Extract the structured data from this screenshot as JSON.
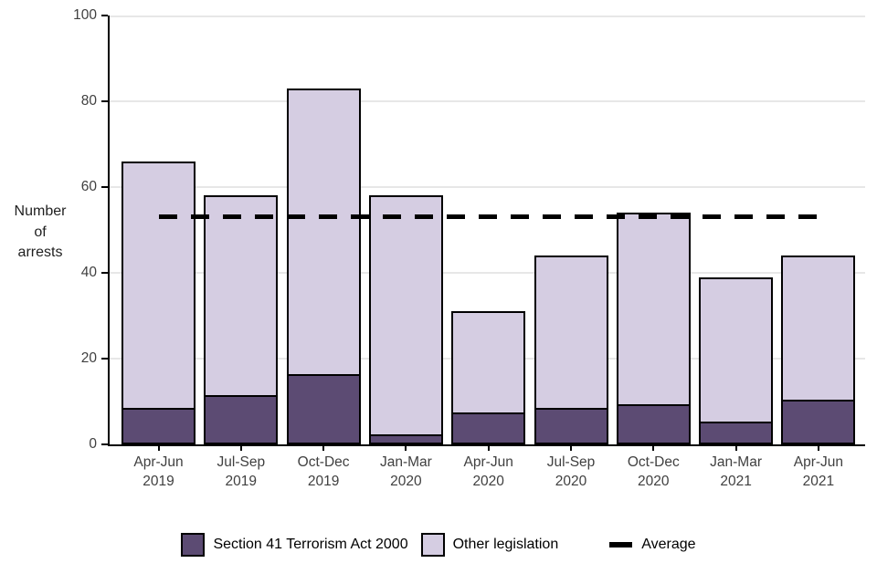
{
  "figure": {
    "background": "#FFFFFF",
    "axis_color": "#000000",
    "tick_label_color": "#404040",
    "grid_color": "#E7E7E7"
  },
  "chart_data": {
    "type": "bar",
    "stacked": true,
    "title": "",
    "xlabel": "",
    "ylabel": "Number of arrests",
    "ylabel_lines": [
      "Number",
      "of",
      "arrests"
    ],
    "ylim": [
      0,
      100
    ],
    "yticks": [
      0,
      20,
      40,
      60,
      80,
      100
    ],
    "grid": true,
    "legend_position": "bottom",
    "categories": [
      "Apr-Jun 2019",
      "Jul-Sep 2019",
      "Oct-Dec 2019",
      "Jan-Mar 2020",
      "Apr-Jun 2020",
      "Jul-Sep 2020",
      "Oct-Dec 2020",
      "Jan-Mar 2021",
      "Apr-Jun 2021"
    ],
    "category_lines": [
      [
        "Apr-Jun",
        "2019"
      ],
      [
        "Jul-Sep",
        "2019"
      ],
      [
        "Oct-Dec",
        "2019"
      ],
      [
        "Jan-Mar",
        "2020"
      ],
      [
        "Apr-Jun",
        "2020"
      ],
      [
        "Jul-Sep",
        "2020"
      ],
      [
        "Oct-Dec",
        "2020"
      ],
      [
        "Jan-Mar",
        "2021"
      ],
      [
        "Apr-Jun",
        "2021"
      ]
    ],
    "series": [
      {
        "name": "Section 41 Terrorism Act 2000",
        "color": "#5C4B73",
        "values": [
          8,
          11,
          16,
          2,
          7,
          8,
          9,
          5,
          10
        ]
      },
      {
        "name": "Other legislation",
        "color": "#D5CDE2",
        "values": [
          58,
          47,
          67,
          56,
          24,
          36,
          45,
          34,
          34
        ]
      }
    ],
    "totals": [
      66,
      58,
      83,
      58,
      31,
      44,
      54,
      39,
      44
    ],
    "average_line": {
      "label": "Average",
      "value": 53,
      "color": "#000000",
      "style": "dashed"
    }
  },
  "legend": {
    "items": [
      {
        "label": "Section 41 Terrorism Act 2000",
        "swatch": "square",
        "color": "#5C4B73"
      },
      {
        "label": "Other legislation",
        "swatch": "square",
        "color": "#D5CDE2"
      },
      {
        "label": "Average",
        "swatch": "dash",
        "color": "#000000"
      }
    ]
  }
}
